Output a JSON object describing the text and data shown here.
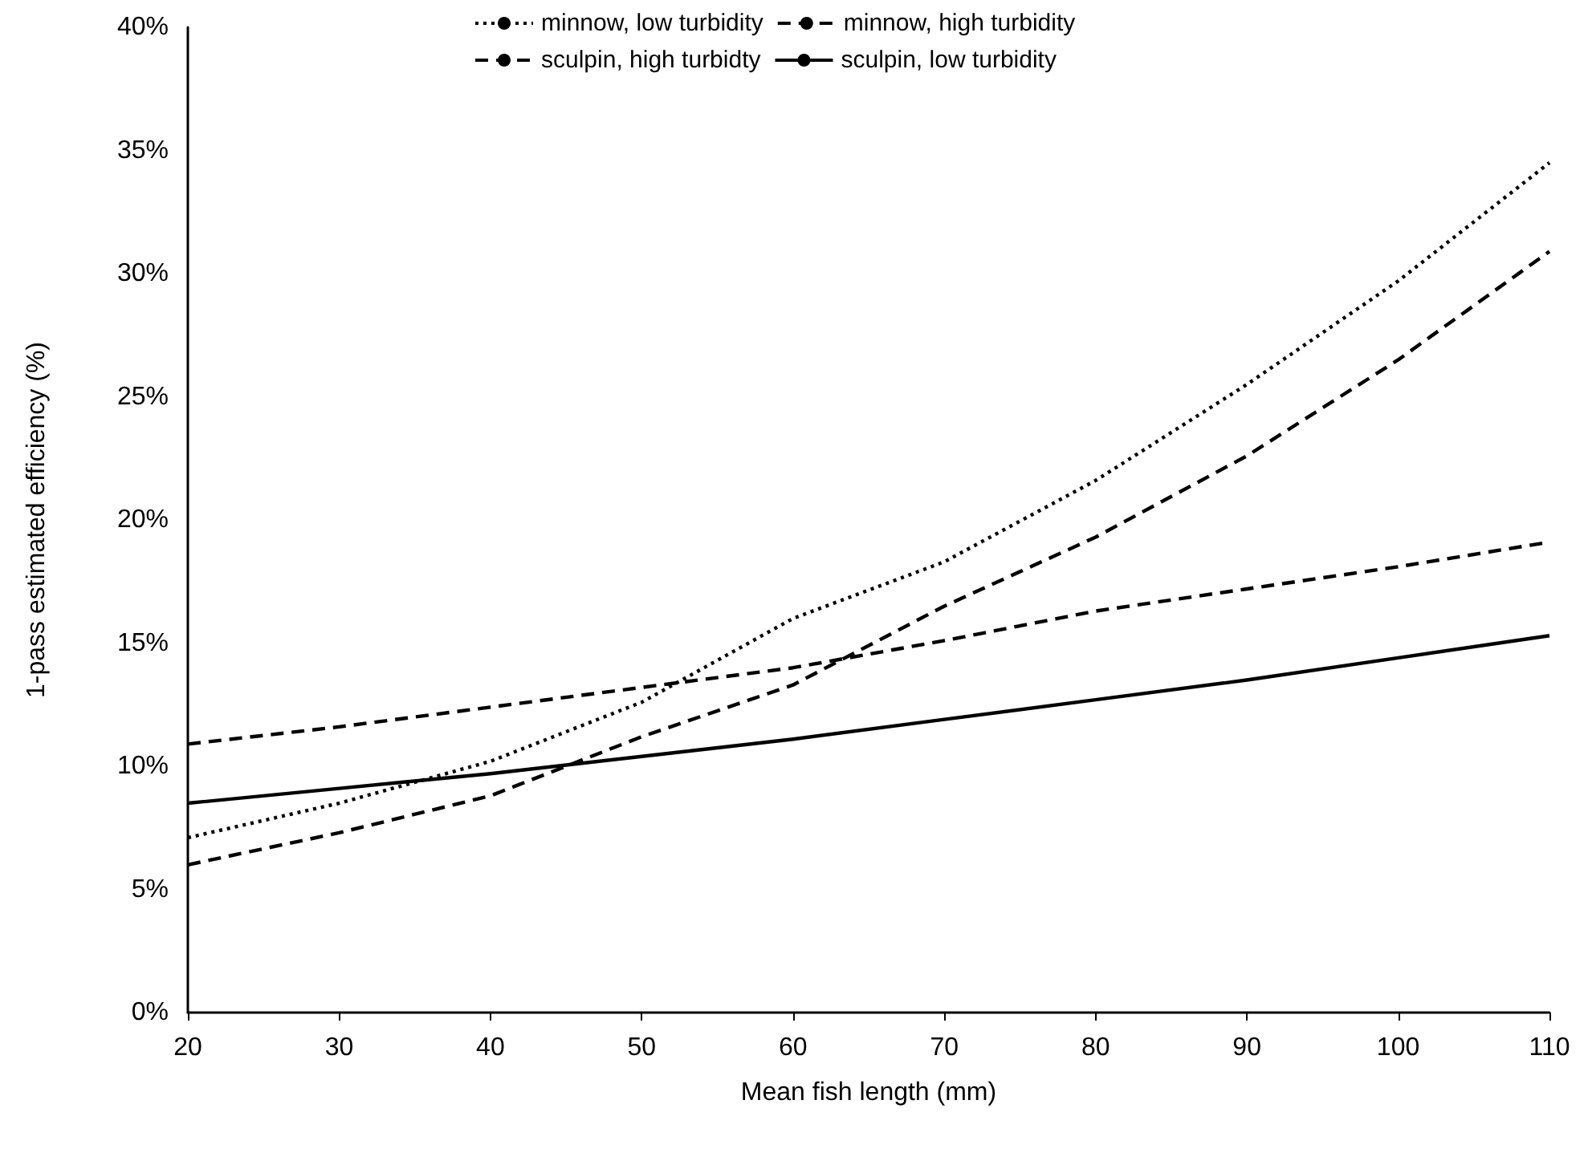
{
  "chart_data": {
    "type": "line",
    "xlabel": "Mean fish length (mm)",
    "ylabel": "1-pass estimated efficiency (%)",
    "x": [
      20,
      30,
      40,
      50,
      60,
      70,
      80,
      90,
      100,
      110
    ],
    "series": [
      {
        "name": "minnow, low turbidity",
        "color": "#000000",
        "line_style": "dotted",
        "values": [
          7.1,
          8.5,
          10.2,
          12.6,
          16.0,
          18.3,
          21.6,
          25.5,
          29.7,
          34.5
        ]
      },
      {
        "name": "minnow, high turbidity",
        "color": "#000000",
        "line_style": "dashed",
        "values": [
          6.0,
          7.3,
          8.8,
          11.2,
          13.3,
          16.5,
          19.3,
          22.6,
          26.5,
          30.9
        ]
      },
      {
        "name": "sculpin, high turbidty",
        "color": "#000000",
        "line_style": "dashed",
        "values": [
          10.9,
          11.6,
          12.4,
          13.2,
          14.0,
          15.1,
          16.3,
          17.2,
          18.1,
          19.1
        ]
      },
      {
        "name": "sculpin, low turbidity",
        "color": "#000000",
        "line_style": "solid",
        "values": [
          8.5,
          9.1,
          9.7,
          10.4,
          11.1,
          11.9,
          12.7,
          13.5,
          14.4,
          15.3
        ]
      }
    ],
    "xlim": [
      20,
      110
    ],
    "xticks": [
      20,
      30,
      40,
      50,
      60,
      70,
      80,
      90,
      100,
      110
    ],
    "ylim": [
      0,
      40
    ],
    "yticks": [
      {
        "value": 0,
        "label": "0%"
      },
      {
        "value": 5,
        "label": "5%"
      },
      {
        "value": 10,
        "label": "10%"
      },
      {
        "value": 15,
        "label": "15%"
      },
      {
        "value": 20,
        "label": "20%"
      },
      {
        "value": 25,
        "label": "25%"
      },
      {
        "value": 30,
        "label": "30%"
      },
      {
        "value": 35,
        "label": "35%"
      },
      {
        "value": 40,
        "label": "40%"
      }
    ],
    "grid": false,
    "legend": "top",
    "marker": "none"
  }
}
